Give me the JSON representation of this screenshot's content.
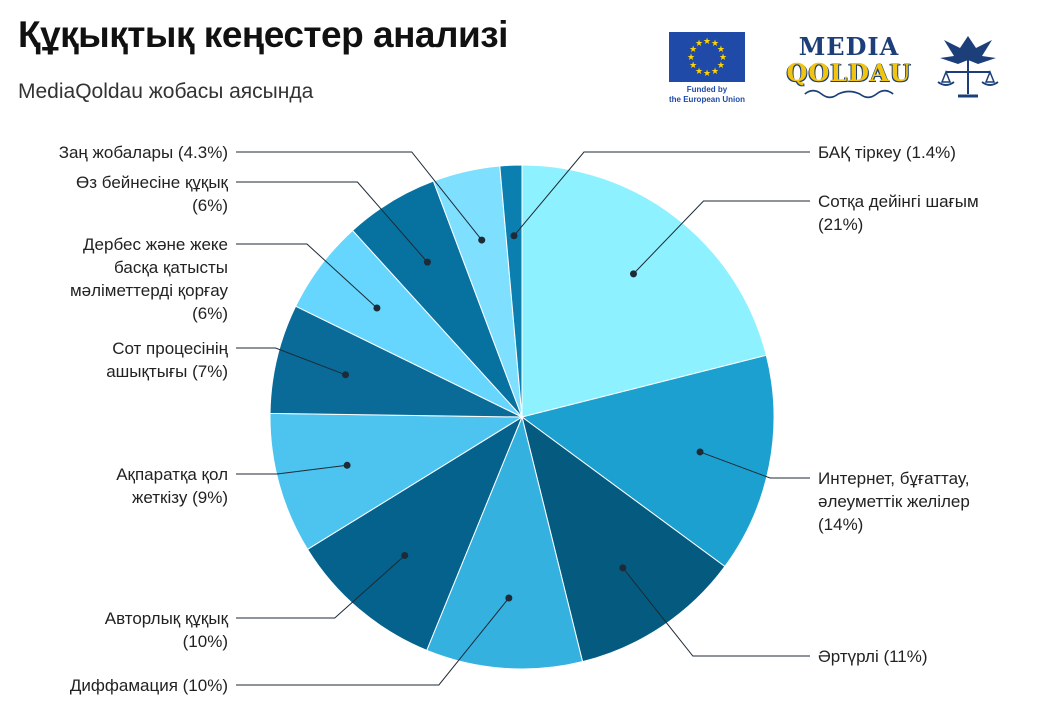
{
  "header": {
    "title": "Құқықтық кеңестер анализі",
    "subtitle": "MediaQoldau жобасы аясында"
  },
  "logos": {
    "eu_caption_line1": "Funded by",
    "eu_caption_line2": "the European Union",
    "media_qoldau_line1": "MEDIA",
    "media_qoldau_line2": "QOLDAU",
    "eu_flag_icon": "eu-flag-icon",
    "bird_emblem_icon": "bird-scales-emblem-icon"
  },
  "colors": {
    "eu_blue": "#1f4aa8",
    "eu_star": "#ffd400",
    "mq_blue": "#1c3f7a",
    "mq_gold": "#f1c40f"
  },
  "chart_data": {
    "type": "pie",
    "title": "",
    "unit": "%",
    "start_angle_deg": 0,
    "direction": "clockwise",
    "slices": [
      {
        "name": "Сотқа дейінгі шағым",
        "value": 21,
        "label_value": "21%",
        "color": "#8ef1ff"
      },
      {
        "name": "Интернет, бұғаттау, әлеуметтік желілер",
        "value": 14,
        "label_value": "14%",
        "color": "#1ba0cf"
      },
      {
        "name": "Әртүрлі",
        "value": 11,
        "label_value": "11%",
        "color": "#055a80"
      },
      {
        "name": "Диффамация",
        "value": 10,
        "label_value": "10%",
        "color": "#35b1e0"
      },
      {
        "name": "Авторлық құқық",
        "value": 10,
        "label_value": "10%",
        "color": "#04628d"
      },
      {
        "name": "Ақпаратқа қол жеткізу",
        "value": 9,
        "label_value": "9%",
        "color": "#4cc4ef"
      },
      {
        "name": "Сот процесінің ашықтығы",
        "value": 7,
        "label_value": "7%",
        "color": "#0a6b99"
      },
      {
        "name": "Дербес және жеке басқа қатысты мәліметтерді қорғау",
        "value": 6,
        "label_value": "6%",
        "color": "#66d6ff"
      },
      {
        "name": "Өз бейнесіне құқық",
        "value": 6,
        "label_value": "6%",
        "color": "#07719f"
      },
      {
        "name": "Заң жобалары",
        "value": 4.3,
        "label_value": "4.3%",
        "color": "#7fdfff"
      },
      {
        "name": "БАҚ тіркеу",
        "value": 1.4,
        "label_value": "1.4%",
        "color": "#0b7fb0"
      }
    ]
  }
}
